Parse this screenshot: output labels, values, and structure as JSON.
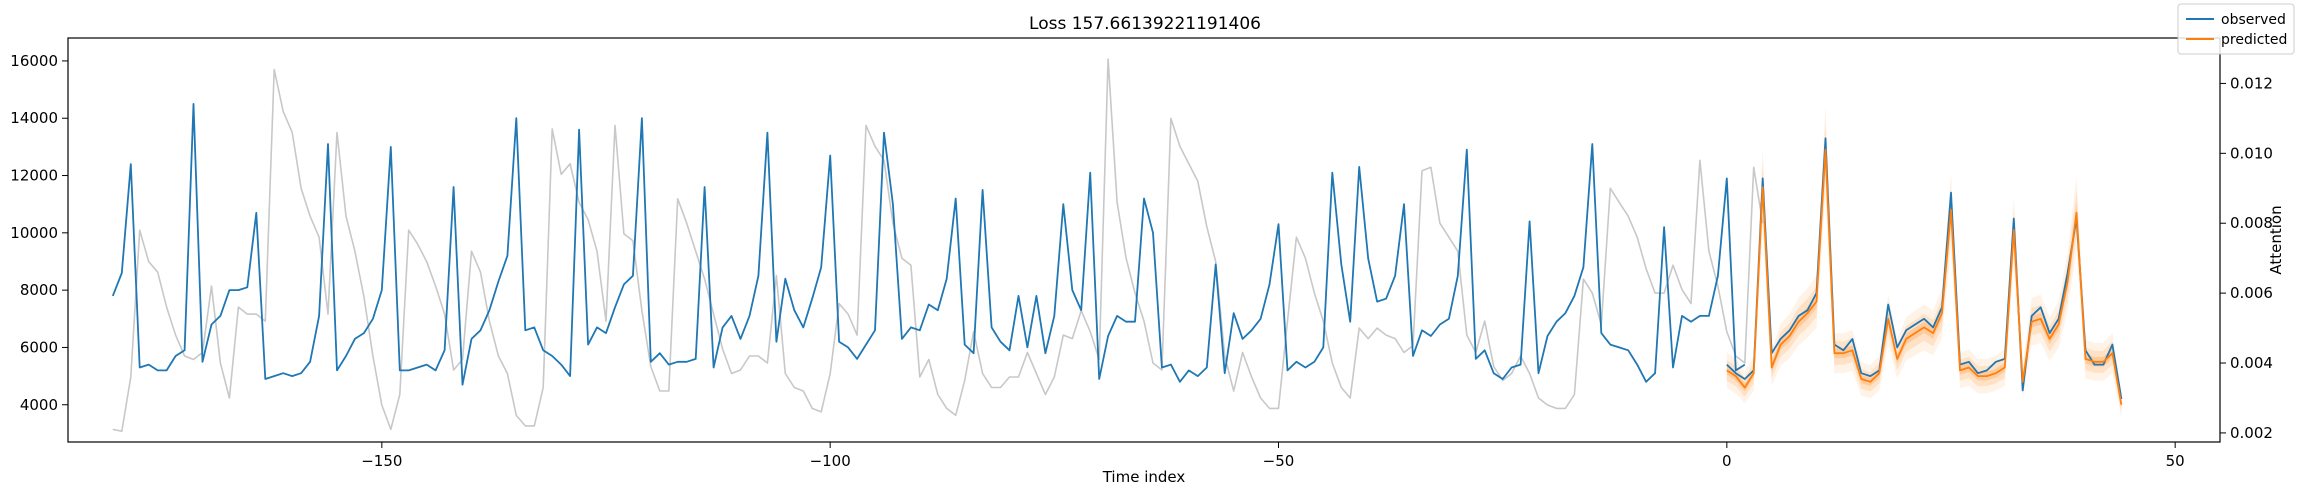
{
  "chart_data": {
    "type": "line",
    "title": "Loss 157.66139221191406",
    "xlabel": "Time index",
    "ylabel": "",
    "y2label": "Attention",
    "xlim": [
      -185,
      55
    ],
    "ylim": [
      2700,
      16800
    ],
    "y2lim": [
      0.00174,
      0.0133
    ],
    "xticks": [
      -150,
      -100,
      -50,
      0,
      50
    ],
    "yticks": [
      4000,
      6000,
      8000,
      10000,
      12000,
      14000,
      16000
    ],
    "y2ticks": [
      0.002,
      0.004,
      0.006,
      0.008,
      0.01,
      0.012
    ],
    "y2tick_labels": [
      "0.002",
      "0.004",
      "0.006",
      "0.008",
      "0.010",
      "0.012"
    ],
    "grid": false,
    "legend_position": "top-right",
    "colors": {
      "observed": "#1f77b4",
      "predicted": "#ff7f0e",
      "attention": "#c8c8c8",
      "band": "#ff7f0e"
    },
    "series": [
      {
        "name": "observed",
        "x_start": -180,
        "values": [
          7800,
          8600,
          12400,
          5300,
          5400,
          5200,
          5200,
          5700,
          5900,
          14500,
          5500,
          6800,
          7100,
          8000,
          8000,
          8100,
          10700,
          4900,
          5000,
          5100,
          5000,
          5100,
          5500,
          7100,
          13100,
          5200,
          5700,
          6300,
          6500,
          7000,
          8000,
          13000,
          5200,
          5200,
          5300,
          5400,
          5200,
          5900,
          11600,
          4700,
          6300,
          6600,
          7300,
          8300,
          9200,
          14000,
          6600,
          6700,
          5900,
          5700,
          5400,
          5000,
          13600,
          6100,
          6700,
          6500,
          7400,
          8200,
          8500,
          14000,
          5500,
          5800,
          5400,
          5500,
          5500,
          5600,
          11600,
          5300,
          6700,
          7100,
          6300,
          7100,
          8500,
          13500,
          6200,
          8400,
          7300,
          6700,
          7700,
          8800,
          12700,
          6200,
          6000,
          5600,
          6100,
          6600,
          13500,
          11000,
          6300,
          6700,
          6600,
          7500,
          7300,
          8400,
          11200,
          6100,
          5800,
          11500,
          6700,
          6200,
          5900,
          7800,
          6000,
          7800,
          5800,
          7100,
          11000,
          8000,
          7300,
          12100,
          4900,
          6400,
          7100,
          6900,
          6900,
          11200,
          10000,
          5300,
          5400,
          4800,
          5200,
          5000,
          5300,
          8900,
          5100,
          7200,
          6300,
          6600,
          7000,
          8200,
          10300,
          5200,
          5500,
          5300,
          5500,
          6000,
          12100,
          8900,
          6900,
          12300,
          9100,
          7600,
          7700,
          8500,
          11000,
          5700,
          6600,
          6400,
          6800,
          7000,
          8500,
          12900,
          5600,
          5900,
          5100,
          4900,
          5300,
          5400,
          10400,
          5100,
          6400,
          6900,
          7200,
          7800,
          8800,
          13100,
          6500,
          6100,
          6000,
          5900,
          5400,
          4800,
          5100,
          10200,
          5300,
          7100,
          6900,
          7100,
          7100,
          8500,
          11900,
          5200,
          5400
        ]
      },
      {
        "name": "observed-forecast",
        "x_start": 0,
        "values": [
          5400,
          5100,
          4900,
          5200,
          11900,
          5800,
          6300,
          6600,
          7100,
          7300,
          7900,
          13300,
          6100,
          5900,
          6300,
          5100,
          5000,
          5200,
          7500,
          6000,
          6600,
          6800,
          7000,
          6700,
          7400,
          11400,
          5400,
          5500,
          5100,
          5200,
          5500,
          5600,
          10500,
          4500,
          7100,
          7400,
          6500,
          7000,
          8600,
          10500,
          5900,
          5400,
          5400,
          6100,
          4200
        ]
      },
      {
        "name": "predicted",
        "x_start": 0,
        "values": [
          5200,
          5000,
          4600,
          5100,
          11600,
          5300,
          6100,
          6400,
          6900,
          7200,
          7600,
          12900,
          5800,
          5800,
          5900,
          4900,
          4800,
          5100,
          7000,
          5600,
          6300,
          6500,
          6700,
          6500,
          7200,
          10800,
          5200,
          5300,
          5000,
          5000,
          5100,
          5300,
          10100,
          4800,
          6900,
          7000,
          6300,
          6800,
          8300,
          10700,
          5600,
          5500,
          5500,
          5800,
          4000
        ]
      },
      {
        "name": "attention",
        "axis": "right",
        "x_start": -180,
        "values": [
          0.0021,
          0.00205,
          0.0036,
          0.0078,
          0.0069,
          0.0066,
          0.0056,
          0.0048,
          0.0042,
          0.0041,
          0.0043,
          0.0062,
          0.004,
          0.003,
          0.0056,
          0.0054,
          0.0054,
          0.0052,
          0.0124,
          0.0112,
          0.0106,
          0.009,
          0.0082,
          0.0076,
          0.0054,
          0.0106,
          0.0082,
          0.0072,
          0.0059,
          0.0042,
          0.0028,
          0.0021,
          0.0031,
          0.0078,
          0.0074,
          0.0069,
          0.0062,
          0.0054,
          0.0038,
          0.0041,
          0.0072,
          0.0066,
          0.0052,
          0.0042,
          0.0037,
          0.0025,
          0.0022,
          0.0022,
          0.0033,
          0.0107,
          0.0094,
          0.0097,
          0.0086,
          0.0081,
          0.0072,
          0.0052,
          0.0108,
          0.0077,
          0.0075,
          0.0055,
          0.0039,
          0.0032,
          0.0032,
          0.0087,
          0.008,
          0.0072,
          0.0064,
          0.0054,
          0.0044,
          0.0037,
          0.0038,
          0.0042,
          0.0042,
          0.004,
          0.0065,
          0.0037,
          0.0033,
          0.0032,
          0.0027,
          0.0026,
          0.0037,
          0.0057,
          0.0054,
          0.0048,
          0.0108,
          0.0102,
          0.0098,
          0.008,
          0.007,
          0.0068,
          0.0036,
          0.0041,
          0.0031,
          0.0027,
          0.0025,
          0.0035,
          0.0049,
          0.0037,
          0.0033,
          0.0033,
          0.0036,
          0.0036,
          0.0043,
          0.0037,
          0.0031,
          0.0036,
          0.0048,
          0.0047,
          0.0055,
          0.0049,
          0.0041,
          0.0127,
          0.0086,
          0.007,
          0.006,
          0.0052,
          0.004,
          0.0038,
          0.011,
          0.0102,
          0.0097,
          0.0092,
          0.0079,
          0.0069,
          0.0042,
          0.0032,
          0.0043,
          0.0036,
          0.003,
          0.0027,
          0.0027,
          0.0052,
          0.0076,
          0.007,
          0.006,
          0.0052,
          0.004,
          0.0033,
          0.003,
          0.005,
          0.0047,
          0.005,
          0.0048,
          0.0047,
          0.0043,
          0.0045,
          0.0095,
          0.0096,
          0.008,
          0.0076,
          0.0072,
          0.0048,
          0.0043,
          0.0052,
          0.0039,
          0.0035,
          0.0037,
          0.0042,
          0.0037,
          0.003,
          0.0028,
          0.0027,
          0.0027,
          0.0031,
          0.0064,
          0.006,
          0.0051,
          0.009,
          0.0086,
          0.0082,
          0.0076,
          0.0067,
          0.006,
          0.006,
          0.0068,
          0.0061,
          0.0057,
          0.0098,
          0.0072,
          0.0062,
          0.0049,
          0.0042,
          0.004,
          0.0096,
          0.008
        ]
      }
    ],
    "prediction_bands": [
      {
        "name": "band-outer",
        "half_width_ratio": 0.12,
        "opacity": 0.1
      },
      {
        "name": "band-middle",
        "half_width_ratio": 0.07,
        "opacity": 0.15
      },
      {
        "name": "band-inner",
        "half_width_ratio": 0.03,
        "opacity": 0.22
      }
    ],
    "legend": [
      "observed",
      "predicted"
    ]
  }
}
